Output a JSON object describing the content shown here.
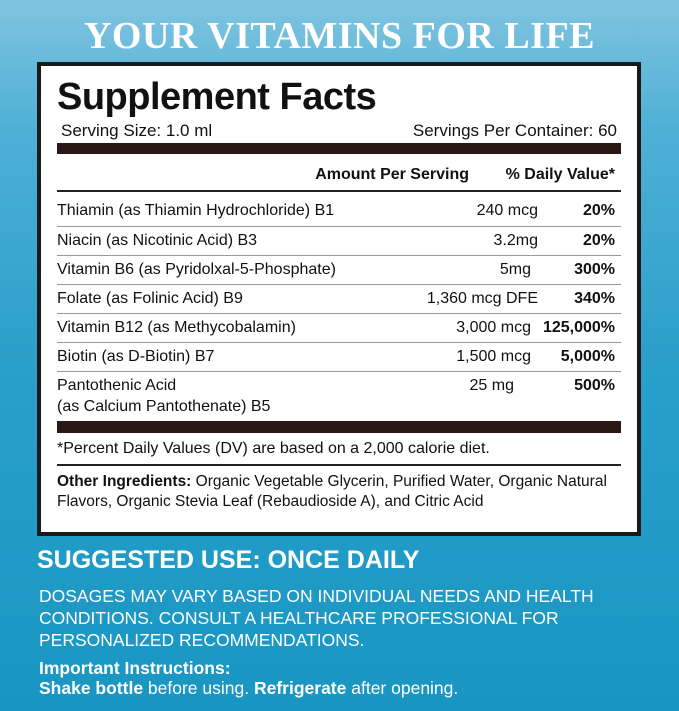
{
  "banner": "YOUR VITAMINS FOR LIFE",
  "facts": {
    "title": "Supplement Facts",
    "serving_size": "Serving Size: 1.0 ml",
    "servings_per_container": "Servings Per Container: 60",
    "col_amount": "Amount Per Serving",
    "col_dv": "% Daily Value*",
    "rows": [
      {
        "name": "Thiamin (as Thiamin Hydrochloride) B1",
        "amount": "240 mcg",
        "dv": "20%"
      },
      {
        "name": "Niacin (as Nicotinic Acid) B3",
        "amount": "3.2mg",
        "dv": "20%"
      },
      {
        "name": "Vitamin B6 (as Pyridolxal-5-Phosphate)",
        "amount": "5mg",
        "dv": "300%"
      },
      {
        "name": "Folate (as Folinic Acid) B9",
        "amount": "1,360 mcg DFE",
        "dv": "340%"
      },
      {
        "name": "Vitamin B12 (as Methycobalamin)",
        "amount": "3,000 mcg",
        "dv": "125,000%"
      },
      {
        "name": "Biotin (as D-Biotin) B7",
        "amount": "1,500 mcg",
        "dv": "5,000%"
      },
      {
        "name": "Pantothenic Acid",
        "name2": "(as Calcium Pantothenate) B5",
        "amount": "25 mg",
        "dv": "500%"
      }
    ],
    "footnote": "*Percent Daily Values (DV) are based on a 2,000 calorie diet.",
    "other_label": "Other Ingredients:",
    "other_text": " Organic Vegetable Glycerin, Purified Water, Organic Natural Flavors, Organic Stevia Leaf (Rebaudioside A), and Citric Acid"
  },
  "usage": {
    "title": "SUGGESTED USE: ONCE DAILY",
    "body": "DOSAGES MAY VARY BASED ON INDIVIDUAL NEEDS AND HEALTH CONDITIONS. CONSULT A HEALTHCARE PROFESSIONAL FOR PERSONALIZED RECOMMENDATIONS.",
    "instr_label": "Important Instructions:",
    "shake": "Shake bottle",
    "before": " before using. ",
    "refrigerate": "Refrigerate",
    "after": " after opening."
  }
}
